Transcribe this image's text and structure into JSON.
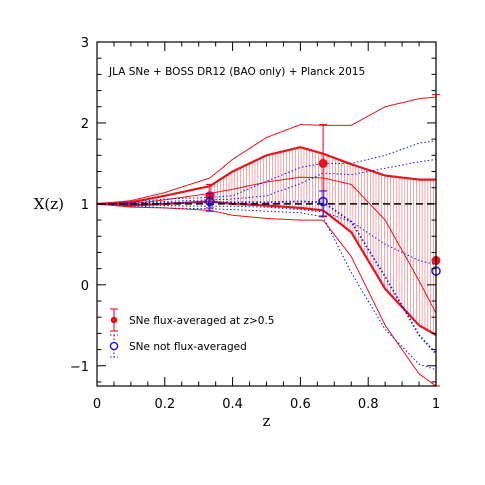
{
  "chart_data": {
    "type": "line",
    "title": "",
    "annotation": "JLA SNe + BOSS DR12 (BAO only) + Planck 2015",
    "xlabel": "z",
    "ylabel": "X(z)",
    "xlim": [
      0,
      1
    ],
    "ylim": [
      -1.25,
      3
    ],
    "xticks": [
      0,
      0.2,
      0.4,
      0.6,
      0.8,
      1
    ],
    "xtick_labels": [
      "0",
      "0.2",
      "0.4",
      "0.6",
      "0.8",
      "1"
    ],
    "yticks": [
      -1,
      0,
      1,
      2,
      3
    ],
    "ytick_labels": [
      "−1",
      "0",
      "1",
      "2",
      "3"
    ],
    "reference_line": 1,
    "colors": {
      "flux_averaged": "#e8141b",
      "not_flux_averaged": "#1414e6",
      "reference": "#000000"
    },
    "series": [
      {
        "name": "SNe flux-averaged at z>0.5",
        "x": [
          0.0,
          0.1,
          0.2,
          0.333,
          0.4,
          0.5,
          0.6,
          0.667,
          0.75,
          0.85,
          0.95,
          1.0
        ],
        "central": [
          1.0,
          1.0,
          1.05,
          1.13,
          1.18,
          1.27,
          1.33,
          1.32,
          1.24,
          0.8,
          0.05,
          -0.35
        ],
        "inner_upper": [
          1.0,
          1.02,
          1.1,
          1.22,
          1.4,
          1.6,
          1.7,
          1.62,
          1.49,
          1.35,
          1.3,
          1.3
        ],
        "inner_lower": [
          1.0,
          0.98,
          1.0,
          1.03,
          1.0,
          0.98,
          0.95,
          0.92,
          0.65,
          -0.05,
          -0.5,
          -0.62
        ],
        "outer_upper": [
          1.0,
          1.04,
          1.14,
          1.32,
          1.55,
          1.82,
          1.98,
          1.97,
          1.97,
          2.2,
          2.3,
          2.32
        ],
        "outer_lower": [
          1.0,
          0.96,
          0.95,
          0.92,
          0.86,
          0.82,
          0.8,
          0.8,
          0.35,
          -0.5,
          -1.1,
          -1.25
        ],
        "points": [
          {
            "x": 0.333,
            "y": 1.1,
            "err_plus": 0.14,
            "err_minus": 0.15
          },
          {
            "x": 0.667,
            "y": 1.5,
            "err_plus": 0.48,
            "err_minus": 0.66
          },
          {
            "x": 1.0,
            "y": 0.3,
            "err_plus": 2.05,
            "err_minus": 1.55
          }
        ]
      },
      {
        "name": "SNe not flux-averaged",
        "x": [
          0.0,
          0.1,
          0.2,
          0.333,
          0.4,
          0.5,
          0.6,
          0.667,
          0.75,
          0.85,
          0.95,
          1.0
        ],
        "central": [
          1.0,
          1.0,
          1.01,
          1.02,
          1.02,
          1.02,
          1.03,
          1.02,
          0.78,
          0.1,
          -0.62,
          -0.85
        ],
        "inner_upper": [
          1.0,
          1.01,
          1.03,
          1.05,
          1.06,
          1.1,
          1.25,
          1.38,
          1.36,
          1.44,
          1.52,
          1.55
        ],
        "inner_lower": [
          1.0,
          0.99,
          0.98,
          0.97,
          0.97,
          0.96,
          0.93,
          0.9,
          0.78,
          0.5,
          0.3,
          0.25
        ],
        "outer_upper": [
          1.0,
          1.02,
          1.06,
          1.08,
          1.1,
          1.28,
          1.45,
          1.5,
          1.5,
          1.6,
          1.75,
          1.78
        ],
        "outer_lower": [
          1.0,
          0.98,
          0.95,
          0.94,
          0.93,
          0.91,
          0.89,
          0.84,
          0.15,
          -0.55,
          -0.98,
          -1.05
        ],
        "points": [
          {
            "x": 0.333,
            "y": 1.03,
            "err_plus": 0.1,
            "err_minus": 0.12
          },
          {
            "x": 0.667,
            "y": 1.03,
            "err_plus": 0.13,
            "err_minus": 0.18
          },
          {
            "x": 1.0,
            "y": 0.17,
            "err_plus": 0.0,
            "err_minus": 0.0
          }
        ]
      }
    ],
    "legend": {
      "position": "bottom-left",
      "entries": [
        {
          "label": "SNe flux-averaged at z>0.5",
          "color": "#e8141b",
          "marker": "filled-circle",
          "line": "solid"
        },
        {
          "label": "SNe not flux-averaged",
          "color": "#1414e6",
          "marker": "open-circle",
          "line": "dotted"
        }
      ]
    }
  }
}
